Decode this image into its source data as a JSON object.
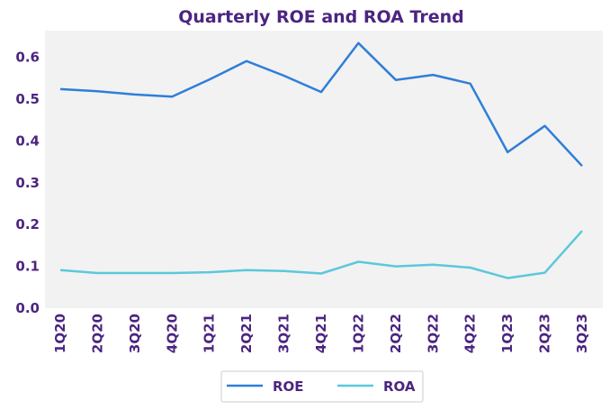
{
  "chart_data": {
    "type": "line",
    "title": "Quarterly ROE and ROA Trend",
    "xlabel": "",
    "ylabel": "",
    "categories": [
      "1Q20",
      "2Q20",
      "3Q20",
      "4Q20",
      "1Q21",
      "2Q21",
      "3Q21",
      "4Q21",
      "1Q22",
      "2Q22",
      "3Q22",
      "4Q22",
      "1Q23",
      "2Q23",
      "3Q23"
    ],
    "series": [
      {
        "name": "ROE",
        "color": "#2f7ed8",
        "values": [
          0.524,
          0.519,
          0.511,
          0.506,
          0.547,
          0.591,
          0.556,
          0.517,
          0.634,
          0.546,
          0.558,
          0.537,
          0.373,
          0.436,
          0.34
        ]
      },
      {
        "name": "ROA",
        "color": "#5bc8dc",
        "values": [
          0.091,
          0.084,
          0.084,
          0.084,
          0.086,
          0.091,
          0.089,
          0.083,
          0.111,
          0.1,
          0.104,
          0.097,
          0.072,
          0.085,
          0.185
        ]
      }
    ],
    "yticks": [
      "0.0",
      "0.1",
      "0.2",
      "0.3",
      "0.4",
      "0.5",
      "0.6"
    ],
    "ylim": [
      0,
      0.66
    ],
    "grid": false,
    "plot_background": "#f2f2f2",
    "legend": {
      "position": "bottom-center",
      "entries": [
        "ROE",
        "ROA"
      ]
    }
  }
}
